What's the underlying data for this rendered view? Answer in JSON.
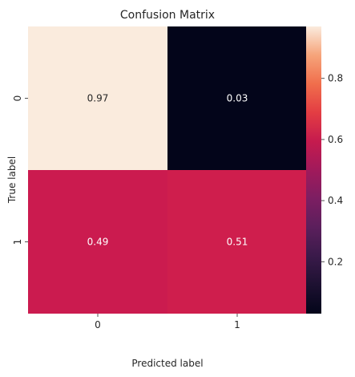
{
  "chart_data": {
    "type": "heatmap",
    "title": "Confusion Matrix",
    "xlabel": "Predicted label",
    "ylabel": "True label",
    "x_categories": [
      "0",
      "1"
    ],
    "y_categories": [
      "0",
      "1"
    ],
    "values": [
      [
        0.97,
        0.03
      ],
      [
        0.49,
        0.51
      ]
    ],
    "annotations": [
      [
        "0.97",
        "0.03"
      ],
      [
        "0.49",
        "0.51"
      ]
    ],
    "colorbar": {
      "min": 0.03,
      "max": 0.97,
      "ticks": [
        0.2,
        0.4,
        0.6,
        0.8
      ],
      "tick_labels": [
        "0.2",
        "0.4",
        "0.6",
        "0.8"
      ]
    },
    "colormap": "rocket",
    "colors": {
      "cell_0_0": "#faebdd",
      "cell_0_1": "#03051a",
      "cell_1_0": "#cb1b4f",
      "cell_1_1": "#cf1e4d"
    }
  }
}
